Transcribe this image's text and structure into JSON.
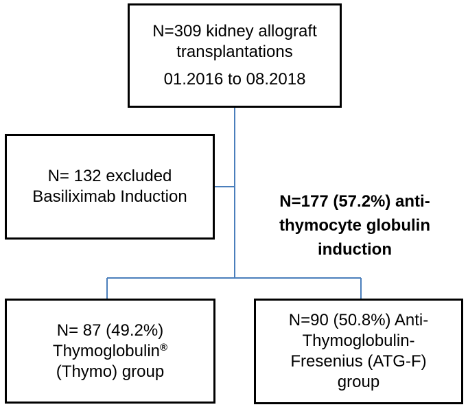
{
  "nodes": {
    "total": {
      "line1": "N=309 kidney allograft",
      "line2": "transplantations",
      "line3": "01.2016 to 08.2018"
    },
    "excluded": {
      "line1": "N= 132 excluded",
      "line2": "Basiliximab Induction"
    },
    "thymo": {
      "line1": "N= 87 (49.2%)",
      "line2": "Thymoglobulin",
      "line2_mark": "®",
      "line3": "(Thymo) group"
    },
    "atgf": {
      "line1": "N=90 (50.8%) Anti-",
      "line2": "Thymoglobulin-",
      "line3": "Fresenius (ATG-F)",
      "line4": "group"
    }
  },
  "annotation": {
    "line1": "N=177 (57.2%) anti-",
    "line2": "thymocyte globulin",
    "line3": "induction"
  },
  "colors": {
    "connector": "#4a7ebb",
    "border": "#000000"
  }
}
